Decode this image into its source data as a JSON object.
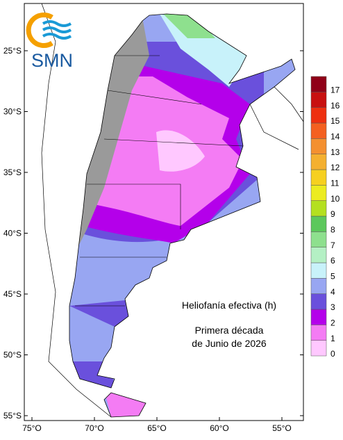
{
  "logo": "SMN",
  "title": "Heliofanía efectiva (h)",
  "subtitle": [
    "Primera década",
    "de Junio de 2026"
  ],
  "lat_labels": [
    "25°S",
    "30°S",
    "35°S",
    "40°S",
    "45°S",
    "50°S",
    "55°S"
  ],
  "lon_labels": [
    "75°O",
    "70°O",
    "65°O",
    "60°O",
    "55°O"
  ],
  "legend": {
    "values": [
      0,
      1,
      2,
      3,
      4,
      5,
      6,
      7,
      8,
      9,
      10,
      11,
      12,
      13,
      14,
      15,
      16,
      17
    ],
    "colors": [
      "#ffc8ff",
      "#f47cf4",
      "#b400ea",
      "#6a50dc",
      "#98a6f2",
      "#c8f2fa",
      "#b4f0c4",
      "#8ee08e",
      "#5cc85c",
      "#b4e020",
      "#ecec20",
      "#f6d020",
      "#f4b030",
      "#f49030",
      "#f46020",
      "#ee3010",
      "#c81010",
      "#900018"
    ]
  }
}
